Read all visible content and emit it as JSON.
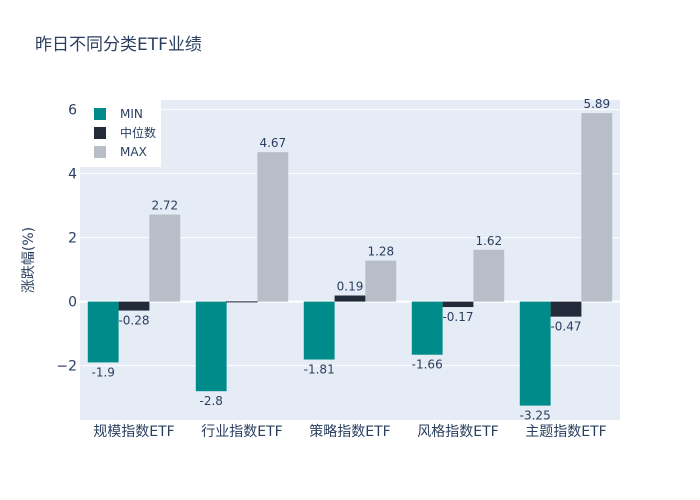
{
  "chart_data": {
    "type": "bar",
    "title": "昨日不同分类ETF业绩",
    "xlabel": "",
    "ylabel": "涨跌幅(%)",
    "categories": [
      "规模指数ETF",
      "行业指数ETF",
      "策略指数ETF",
      "风格指数ETF",
      "主题指数ETF"
    ],
    "series": [
      {
        "name": "MIN",
        "values": [
          -1.9,
          -2.8,
          -1.81,
          -1.66,
          -3.25
        ],
        "color": "#008b8b"
      },
      {
        "name": "中位数",
        "values": [
          -0.28,
          -0.01,
          0.19,
          -0.17,
          -0.47
        ],
        "color": "#232b3b"
      },
      {
        "name": "MAX",
        "values": [
          2.72,
          4.67,
          1.28,
          1.62,
          5.89
        ],
        "color": "#b8bec7"
      }
    ],
    "data_labels": [
      [
        "-1.9",
        "-0.28",
        "2.72"
      ],
      [
        "-2.8",
        "",
        "4.67"
      ],
      [
        "-1.81",
        "0.19",
        "1.28"
      ],
      [
        "-1.66",
        "-0.17",
        "1.62"
      ],
      [
        "-3.25",
        "-0.47",
        "5.89"
      ]
    ],
    "ylim": [
      -3.7,
      6.3
    ],
    "yticks": [
      -2,
      0,
      2,
      4,
      6
    ],
    "ytick_labels": [
      "−2",
      "0",
      "2",
      "4",
      "6"
    ],
    "grid": true,
    "legend_position": "top-left",
    "plot_bg": "#e5ecf6"
  }
}
